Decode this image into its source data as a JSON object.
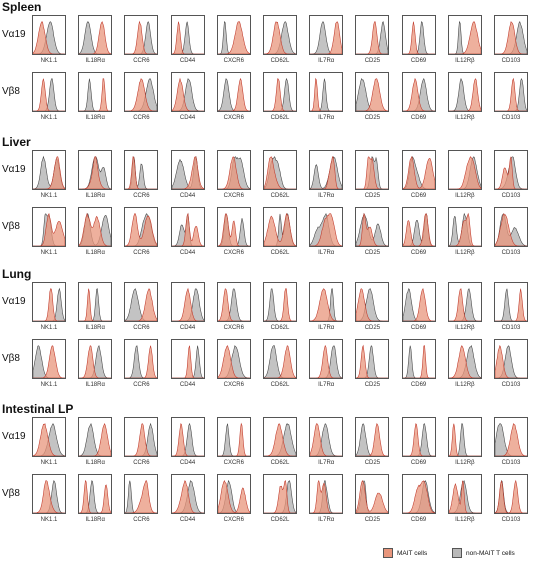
{
  "chart_data": {
    "type": "histogram-grid",
    "tissues": [
      "Spleen",
      "Liver",
      "Lung",
      "Intestinal LP"
    ],
    "rows": [
      "Vα19",
      "Vβ8"
    ],
    "markers": [
      "NK1.1",
      "IL18Rα",
      "CCR6",
      "CD44",
      "CXCR6",
      "CD62L",
      "IL7Rα",
      "CD25",
      "CD69",
      "IL12Rβ",
      "CD103"
    ],
    "legend": [
      {
        "label": "MAIT cells",
        "color": "#e8967c"
      },
      {
        "label": "non-MAIT T cells",
        "color": "#b9b9b9"
      }
    ],
    "series_colors": {
      "mait": "#e8967c",
      "mait_line": "#c0392b",
      "non_mait": "#b9b9b9",
      "non_mait_line": "#444444"
    }
  }
}
